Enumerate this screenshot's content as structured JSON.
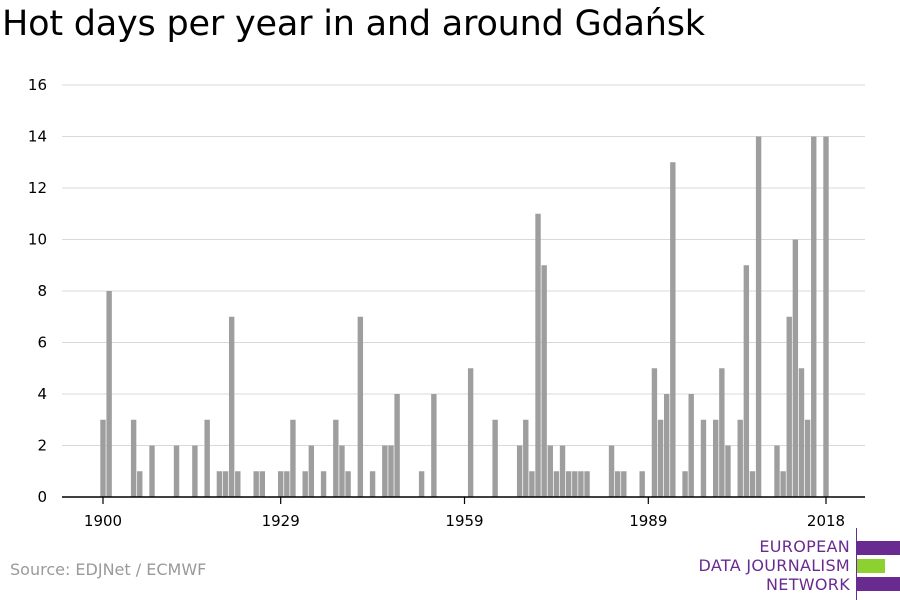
{
  "title": "Hot days per year in and around Gdańsk",
  "source": "Source: EDJNet / ECMWF",
  "logo": {
    "line1": "EUROPEAN",
    "line2": "DATA JOURNALISM",
    "line3": "NETWORK",
    "colors": {
      "purple": "#6a2b90",
      "green": "#8cd12f"
    }
  },
  "colors": {
    "bar": "#9e9e9e",
    "grid": "#d9d9d9",
    "axis": "#000000"
  },
  "chart_data": {
    "type": "bar",
    "title": "Hot days per year in and around Gdańsk",
    "xlabel": "",
    "ylabel": "",
    "ylim": [
      0,
      16
    ],
    "xlim": [
      1900,
      2018
    ],
    "yticks": [
      0,
      2,
      4,
      6,
      8,
      10,
      12,
      14,
      16
    ],
    "xticks": [
      1900,
      1929,
      1959,
      1989,
      2018
    ],
    "grid": true,
    "legend": "none",
    "x": [
      1900,
      1901,
      1905,
      1906,
      1908,
      1912,
      1915,
      1917,
      1919,
      1920,
      1921,
      1922,
      1925,
      1926,
      1929,
      1930,
      1931,
      1933,
      1934,
      1936,
      1938,
      1939,
      1940,
      1942,
      1944,
      1946,
      1947,
      1948,
      1952,
      1954,
      1960,
      1964,
      1968,
      1969,
      1970,
      1971,
      1972,
      1973,
      1974,
      1975,
      1976,
      1977,
      1978,
      1979,
      1983,
      1984,
      1985,
      1988,
      1990,
      1991,
      1992,
      1993,
      1995,
      1996,
      1998,
      2000,
      2001,
      2002,
      2004,
      2005,
      2006,
      2007,
      2010,
      2011,
      2012,
      2013,
      2014,
      2015,
      2016,
      2018
    ],
    "values": [
      3,
      8,
      3,
      1,
      2,
      2,
      2,
      3,
      1,
      1,
      7,
      1,
      1,
      1,
      1,
      1,
      3,
      1,
      2,
      1,
      3,
      2,
      1,
      7,
      1,
      2,
      2,
      4,
      1,
      4,
      5,
      3,
      2,
      3,
      1,
      11,
      9,
      2,
      1,
      2,
      1,
      1,
      1,
      1,
      2,
      1,
      1,
      1,
      5,
      3,
      4,
      13,
      1,
      4,
      3,
      3,
      5,
      2,
      3,
      9,
      1,
      14,
      2,
      1,
      7,
      10,
      5,
      3,
      14,
      14
    ]
  }
}
